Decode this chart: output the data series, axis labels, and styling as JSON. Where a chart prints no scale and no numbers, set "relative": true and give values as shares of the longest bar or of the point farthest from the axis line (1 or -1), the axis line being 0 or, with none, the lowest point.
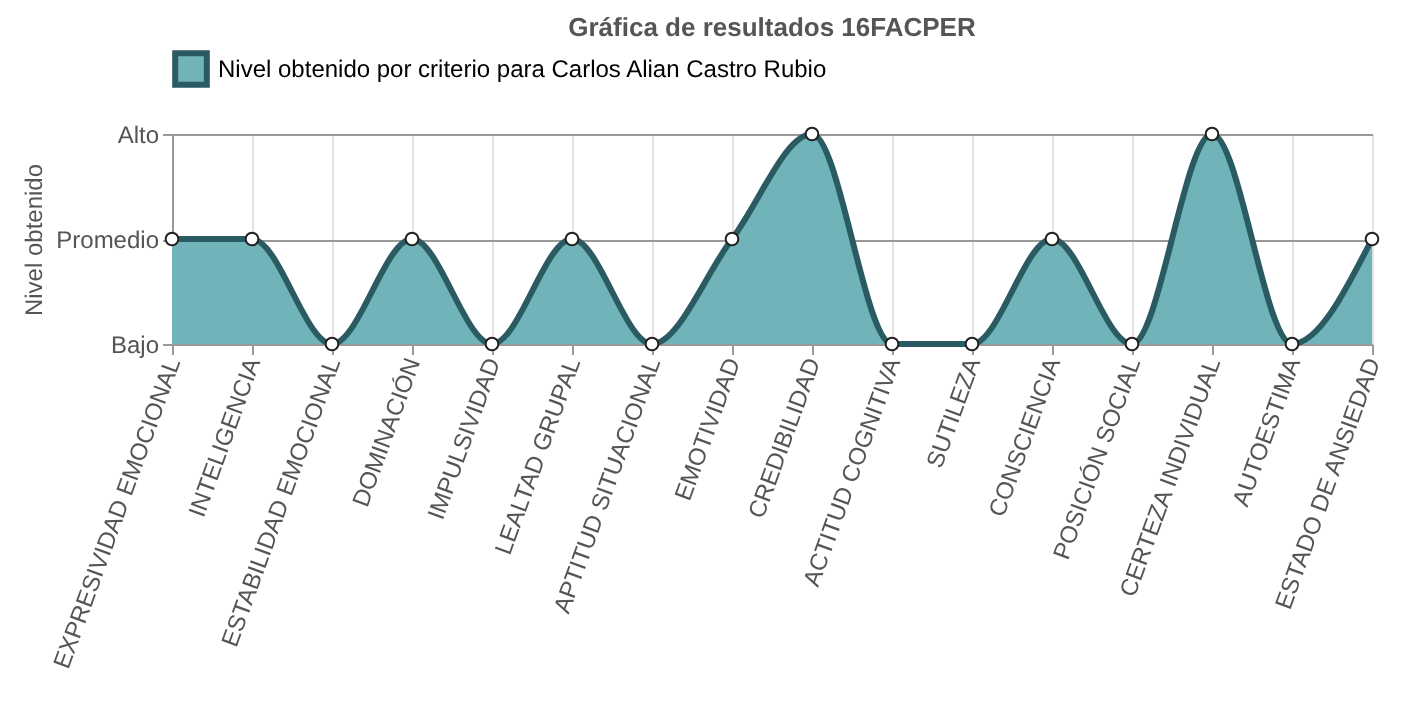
{
  "chart_data": {
    "type": "area",
    "title": "Gráfica de resultados 16FACPER",
    "ylabel": "Nivel obtenido",
    "categories": [
      "EXPRESIVIDAD EMOCIONAL",
      "INTELIGENCIA",
      "ESTABILIDAD EMOCIONAL",
      "DOMINACIÓN",
      "IMPULSIVIDAD",
      "LEALTAD GRUPAL",
      "APTITUD SITUACIONAL",
      "EMOTIVIDAD",
      "CREDIBILIDAD",
      "ACTITUD COGNITIVA",
      "SUTILEZA",
      "CONSCIENCIA",
      "POSICIÓN SOCIAL",
      "CERTEZA INDIVIDUAL",
      "AUTOESTIMA",
      "ESTADO DE ANSIEDAD"
    ],
    "series": [
      {
        "name": "Nivel obtenido por criterio para Carlos Alian Castro Rubio",
        "color": "#2a5b62",
        "values": [
          0.5,
          0.5,
          0,
          0.5,
          0,
          0.5,
          0,
          0.5,
          1,
          0,
          0,
          0.5,
          0,
          1,
          0,
          0.5
        ]
      }
    ],
    "relative": true,
    "y_categories": [
      "Alto",
      "Promedio",
      "Bajo"
    ],
    "grid": true,
    "legend": "top",
    "marker": "circle",
    "line_style": "solid"
  }
}
